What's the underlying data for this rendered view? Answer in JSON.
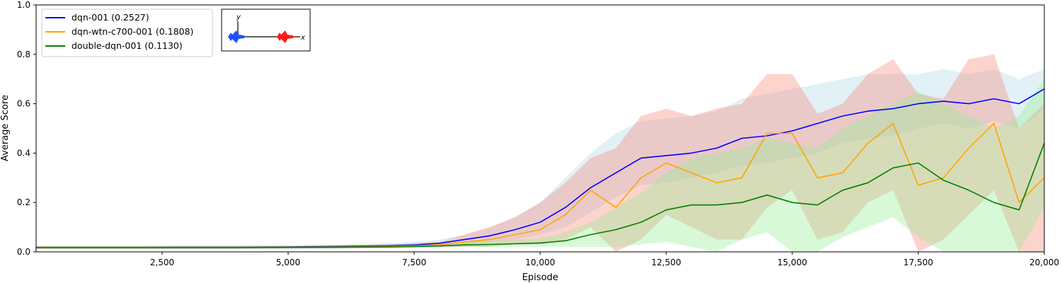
{
  "chart_data": {
    "type": "line",
    "xlabel": "Episode",
    "ylabel": "Average Score",
    "xlim": [
      0,
      20000
    ],
    "ylim": [
      0,
      1.0
    ],
    "xticks": [
      2500,
      5000,
      7500,
      10000,
      12500,
      15000,
      17500,
      20000
    ],
    "xtick_labels": [
      "2,500",
      "5,000",
      "7,500",
      "10,000",
      "12,500",
      "15,000",
      "17,500",
      "20,000"
    ],
    "yticks": [
      0.0,
      0.2,
      0.4,
      0.6,
      0.8,
      1.0
    ],
    "ytick_labels": [
      "0.0",
      "0.2",
      "0.4",
      "0.6",
      "0.8",
      "1.0"
    ],
    "grid": false,
    "legend_position": "top-left",
    "x": [
      0,
      1000,
      2000,
      3000,
      4000,
      5000,
      6000,
      7000,
      7500,
      8000,
      8500,
      9000,
      9500,
      10000,
      10500,
      11000,
      11500,
      12000,
      12500,
      13000,
      13500,
      14000,
      14500,
      15000,
      15500,
      16000,
      16500,
      17000,
      17500,
      18000,
      18500,
      19000,
      19500,
      20000
    ],
    "series": [
      {
        "name": "dqn-001 (0.2527)",
        "color": "#0000ff",
        "band_color": "#add8e6",
        "values": [
          0.018,
          0.018,
          0.018,
          0.019,
          0.019,
          0.02,
          0.022,
          0.025,
          0.028,
          0.035,
          0.05,
          0.065,
          0.09,
          0.12,
          0.18,
          0.26,
          0.32,
          0.38,
          0.39,
          0.4,
          0.42,
          0.46,
          0.47,
          0.49,
          0.52,
          0.55,
          0.57,
          0.58,
          0.6,
          0.61,
          0.6,
          0.62,
          0.6,
          0.66
        ],
        "lower": [
          0.012,
          0.012,
          0.012,
          0.012,
          0.013,
          0.013,
          0.014,
          0.016,
          0.018,
          0.022,
          0.03,
          0.04,
          0.05,
          0.07,
          0.1,
          0.16,
          0.22,
          0.27,
          0.28,
          0.3,
          0.32,
          0.35,
          0.36,
          0.38,
          0.4,
          0.44,
          0.46,
          0.47,
          0.5,
          0.52,
          0.5,
          0.53,
          0.5,
          0.58
        ],
        "upper": [
          0.025,
          0.025,
          0.025,
          0.026,
          0.026,
          0.027,
          0.031,
          0.036,
          0.04,
          0.05,
          0.07,
          0.1,
          0.14,
          0.2,
          0.3,
          0.4,
          0.48,
          0.53,
          0.54,
          0.55,
          0.57,
          0.62,
          0.64,
          0.66,
          0.68,
          0.7,
          0.72,
          0.72,
          0.72,
          0.74,
          0.72,
          0.74,
          0.7,
          0.74
        ]
      },
      {
        "name": "dqn-wtn-c700-001 (0.1808)",
        "color": "#ffa500",
        "band_color": "#fa8072",
        "values": [
          0.018,
          0.018,
          0.018,
          0.018,
          0.018,
          0.019,
          0.02,
          0.022,
          0.025,
          0.028,
          0.04,
          0.05,
          0.07,
          0.09,
          0.15,
          0.25,
          0.18,
          0.3,
          0.36,
          0.32,
          0.28,
          0.3,
          0.48,
          0.48,
          0.3,
          0.32,
          0.44,
          0.52,
          0.27,
          0.3,
          0.42,
          0.52,
          0.2,
          0.3
        ],
        "lower": [
          0.012,
          0.012,
          0.012,
          0.012,
          0.012,
          0.013,
          0.013,
          0.015,
          0.016,
          0.018,
          0.02,
          0.02,
          0.03,
          0.03,
          0.05,
          0.1,
          0.0,
          0.05,
          0.15,
          0.1,
          0.05,
          0.05,
          0.18,
          0.25,
          0.05,
          0.08,
          0.2,
          0.25,
          0.0,
          0.05,
          0.15,
          0.25,
          0.0,
          0.0
        ],
        "upper": [
          0.024,
          0.024,
          0.024,
          0.024,
          0.024,
          0.025,
          0.027,
          0.03,
          0.035,
          0.04,
          0.07,
          0.1,
          0.14,
          0.2,
          0.28,
          0.38,
          0.42,
          0.55,
          0.58,
          0.55,
          0.58,
          0.6,
          0.72,
          0.72,
          0.56,
          0.6,
          0.72,
          0.78,
          0.64,
          0.62,
          0.78,
          0.8,
          0.5,
          0.6
        ]
      },
      {
        "name": "double-dqn-001 (0.1130)",
        "color": "#008000",
        "band_color": "#90ee90",
        "values": [
          0.017,
          0.017,
          0.017,
          0.017,
          0.017,
          0.018,
          0.019,
          0.02,
          0.022,
          0.024,
          0.028,
          0.03,
          0.033,
          0.036,
          0.045,
          0.07,
          0.09,
          0.12,
          0.17,
          0.19,
          0.19,
          0.2,
          0.23,
          0.2,
          0.19,
          0.25,
          0.28,
          0.34,
          0.36,
          0.29,
          0.25,
          0.2,
          0.17,
          0.44
        ],
        "lower": [
          0.012,
          0.012,
          0.012,
          0.012,
          0.012,
          0.013,
          0.014,
          0.015,
          0.016,
          0.018,
          0.02,
          0.02,
          0.02,
          0.02,
          0.02,
          0.02,
          0.02,
          0.03,
          0.04,
          0.02,
          0.0,
          0.05,
          0.08,
          0.0,
          0.0,
          0.06,
          0.1,
          0.14,
          0.06,
          0.0,
          0.0,
          0.0,
          0.0,
          0.18
        ],
        "upper": [
          0.022,
          0.022,
          0.022,
          0.022,
          0.022,
          0.023,
          0.024,
          0.026,
          0.028,
          0.03,
          0.04,
          0.045,
          0.05,
          0.055,
          0.08,
          0.12,
          0.18,
          0.24,
          0.32,
          0.38,
          0.4,
          0.42,
          0.46,
          0.44,
          0.42,
          0.5,
          0.55,
          0.6,
          0.65,
          0.6,
          0.55,
          0.5,
          0.55,
          0.7
        ]
      }
    ]
  },
  "inset": {
    "y_axis_label": "y",
    "x_axis_label": "x",
    "left_ship_color": "#1f4fff",
    "right_ship_color": "#ff1a1a"
  }
}
